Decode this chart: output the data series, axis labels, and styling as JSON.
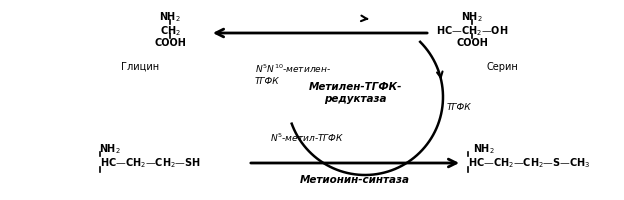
{
  "bg_color": "#ffffff",
  "label_n5n10": "$N^5N^{10}$-метилен-\nТГФК",
  "label_tgfk": "ТГФК",
  "label_n5": "$N^5$-метил-ТГФК",
  "label_enzyme_center": "Метилен-ТГФК-\nредуктаза",
  "label_methionine_synthase": "Метионин-синтаза",
  "glycine_label": "Глицин",
  "serine_label": "Серин"
}
